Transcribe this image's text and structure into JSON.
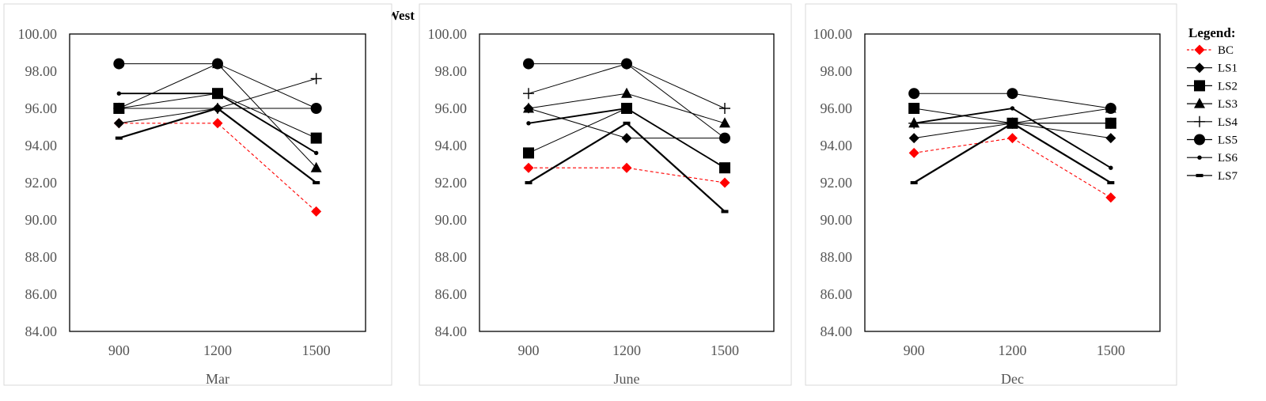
{
  "title": "West",
  "legend_title": "Legend:",
  "chart_data": [
    {
      "type": "line",
      "xlabel": "Mar",
      "categories": [
        "900",
        "1200",
        "1500"
      ],
      "ylim": [
        84,
        100
      ],
      "yticks": [
        "84.00",
        "86.00",
        "88.00",
        "90.00",
        "92.00",
        "94.00",
        "96.00",
        "98.00",
        "100.00"
      ],
      "series": [
        {
          "name": "BC",
          "values": [
            95.2,
            95.2,
            90.45
          ]
        },
        {
          "name": "LS1",
          "values": [
            95.2,
            96.0,
            96.0
          ]
        },
        {
          "name": "LS2",
          "values": [
            96.0,
            96.8,
            94.4
          ]
        },
        {
          "name": "LS3",
          "values": [
            96.0,
            98.4,
            92.8
          ]
        },
        {
          "name": "LS4",
          "values": [
            96.0,
            96.0,
            97.6
          ]
        },
        {
          "name": "LS5",
          "values": [
            98.4,
            98.4,
            96.0
          ]
        },
        {
          "name": "LS6",
          "values": [
            96.8,
            96.8,
            93.6
          ]
        },
        {
          "name": "LS7",
          "values": [
            94.4,
            96.0,
            92.0
          ]
        }
      ]
    },
    {
      "type": "line",
      "xlabel": "June",
      "categories": [
        "900",
        "1200",
        "1500"
      ],
      "ylim": [
        84,
        100
      ],
      "yticks": [
        "84.00",
        "86.00",
        "88.00",
        "90.00",
        "92.00",
        "94.00",
        "96.00",
        "98.00",
        "100.00"
      ],
      "series": [
        {
          "name": "BC",
          "values": [
            92.8,
            92.8,
            92.0
          ]
        },
        {
          "name": "LS1",
          "values": [
            96.0,
            94.4,
            94.4
          ]
        },
        {
          "name": "LS2",
          "values": [
            93.6,
            96.0,
            92.8
          ]
        },
        {
          "name": "LS3",
          "values": [
            96.0,
            96.8,
            95.2
          ]
        },
        {
          "name": "LS4",
          "values": [
            96.8,
            98.4,
            96.0
          ]
        },
        {
          "name": "LS5",
          "values": [
            98.4,
            98.4,
            94.4
          ]
        },
        {
          "name": "LS6",
          "values": [
            95.2,
            96.0,
            92.8
          ]
        },
        {
          "name": "LS7",
          "values": [
            92.0,
            95.2,
            90.45
          ]
        }
      ]
    },
    {
      "type": "line",
      "xlabel": "Dec",
      "categories": [
        "900",
        "1200",
        "1500"
      ],
      "ylim": [
        84,
        100
      ],
      "yticks": [
        "84.00",
        "86.00",
        "88.00",
        "90.00",
        "92.00",
        "94.00",
        "96.00",
        "98.00",
        "100.00"
      ],
      "series": [
        {
          "name": "BC",
          "values": [
            93.6,
            94.4,
            91.2
          ]
        },
        {
          "name": "LS1",
          "values": [
            94.4,
            95.2,
            94.4
          ]
        },
        {
          "name": "LS2",
          "values": [
            96.0,
            95.2,
            95.2
          ]
        },
        {
          "name": "LS3",
          "values": [
            95.2,
            95.2,
            96.0
          ]
        },
        {
          "name": "LS4",
          "values": [
            95.2,
            95.2,
            95.2
          ]
        },
        {
          "name": "LS5",
          "values": [
            96.8,
            96.8,
            96.0
          ]
        },
        {
          "name": "LS6",
          "values": [
            95.2,
            96.0,
            92.8
          ]
        },
        {
          "name": "LS7",
          "values": [
            92.0,
            95.2,
            92.0
          ]
        }
      ]
    }
  ],
  "series_styles": {
    "BC": {
      "color": "#ff0000",
      "marker": "diamond",
      "dash": true
    },
    "LS1": {
      "color": "#000000",
      "marker": "diamond",
      "dash": false
    },
    "LS2": {
      "color": "#000000",
      "marker": "square",
      "dash": false
    },
    "LS3": {
      "color": "#000000",
      "marker": "triangle",
      "dash": false
    },
    "LS4": {
      "color": "#000000",
      "marker": "plus",
      "dash": false
    },
    "LS5": {
      "color": "#000000",
      "marker": "circle",
      "dash": false
    },
    "LS6": {
      "color": "#000000",
      "marker": "dot",
      "dash": false
    },
    "LS7": {
      "color": "#000000",
      "marker": "dash",
      "dash": false
    }
  }
}
